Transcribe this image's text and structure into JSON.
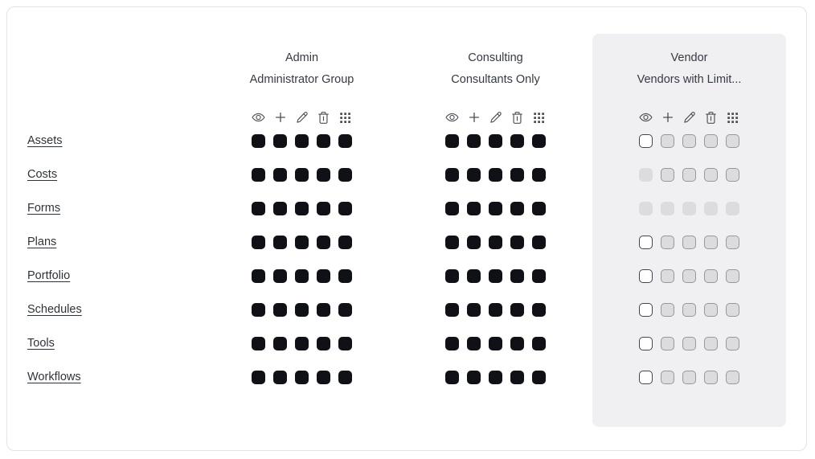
{
  "card": {
    "background": "#ffffff",
    "border_color": "#e3e3e6"
  },
  "colors": {
    "checked_fill": "#0f1117",
    "unchecked_border": "#3b4559",
    "disabled_fill": "#dcdcde",
    "disabled_border": "#97979c",
    "icon_color": "#4c4f57",
    "text_color": "#363a43",
    "highlight_panel_background": "#f0f0f2"
  },
  "rows": [
    {
      "label": "Assets"
    },
    {
      "label": "Costs"
    },
    {
      "label": "Forms"
    },
    {
      "label": "Plans"
    },
    {
      "label": "Portfolio"
    },
    {
      "label": "Schedules"
    },
    {
      "label": "Tools"
    },
    {
      "label": "Workflows"
    }
  ],
  "action_icons": [
    "eye",
    "plus",
    "pencil",
    "trash",
    "grid-dots"
  ],
  "groups": [
    {
      "name": "Admin",
      "subtitle": "Administrator Group",
      "highlighted": false,
      "permissions": [
        [
          "checked",
          "checked",
          "checked",
          "checked",
          "checked"
        ],
        [
          "checked",
          "checked",
          "checked",
          "checked",
          "checked"
        ],
        [
          "checked",
          "checked",
          "checked",
          "checked",
          "checked"
        ],
        [
          "checked",
          "checked",
          "checked",
          "checked",
          "checked"
        ],
        [
          "checked",
          "checked",
          "checked",
          "checked",
          "checked"
        ],
        [
          "checked",
          "checked",
          "checked",
          "checked",
          "checked"
        ],
        [
          "checked",
          "checked",
          "checked",
          "checked",
          "checked"
        ],
        [
          "checked",
          "checked",
          "checked",
          "checked",
          "checked"
        ]
      ]
    },
    {
      "name": "Consulting",
      "subtitle": "Consultants Only",
      "highlighted": false,
      "permissions": [
        [
          "checked",
          "checked",
          "checked",
          "checked",
          "checked"
        ],
        [
          "checked",
          "checked",
          "checked",
          "checked",
          "checked"
        ],
        [
          "checked",
          "checked",
          "checked",
          "checked",
          "checked"
        ],
        [
          "checked",
          "checked",
          "checked",
          "checked",
          "checked"
        ],
        [
          "checked",
          "checked",
          "checked",
          "checked",
          "checked"
        ],
        [
          "checked",
          "checked",
          "checked",
          "checked",
          "checked"
        ],
        [
          "checked",
          "checked",
          "checked",
          "checked",
          "checked"
        ],
        [
          "checked",
          "checked",
          "checked",
          "checked",
          "checked"
        ]
      ]
    },
    {
      "name": "Vendor",
      "subtitle": "Vendors with Limit...",
      "highlighted": true,
      "permissions": [
        [
          "unchecked",
          "disabled",
          "disabled",
          "disabled",
          "disabled"
        ],
        [
          "disabled_plain",
          "disabled",
          "disabled",
          "disabled",
          "disabled"
        ],
        [
          "disabled_plain",
          "disabled_plain",
          "disabled_plain",
          "disabled_plain",
          "disabled_plain"
        ],
        [
          "unchecked",
          "disabled",
          "disabled",
          "disabled",
          "disabled"
        ],
        [
          "unchecked",
          "disabled",
          "disabled",
          "disabled",
          "disabled"
        ],
        [
          "unchecked",
          "disabled",
          "disabled",
          "disabled",
          "disabled"
        ],
        [
          "unchecked",
          "disabled",
          "disabled",
          "disabled",
          "disabled"
        ],
        [
          "unchecked",
          "disabled",
          "disabled",
          "disabled",
          "disabled"
        ]
      ]
    }
  ]
}
